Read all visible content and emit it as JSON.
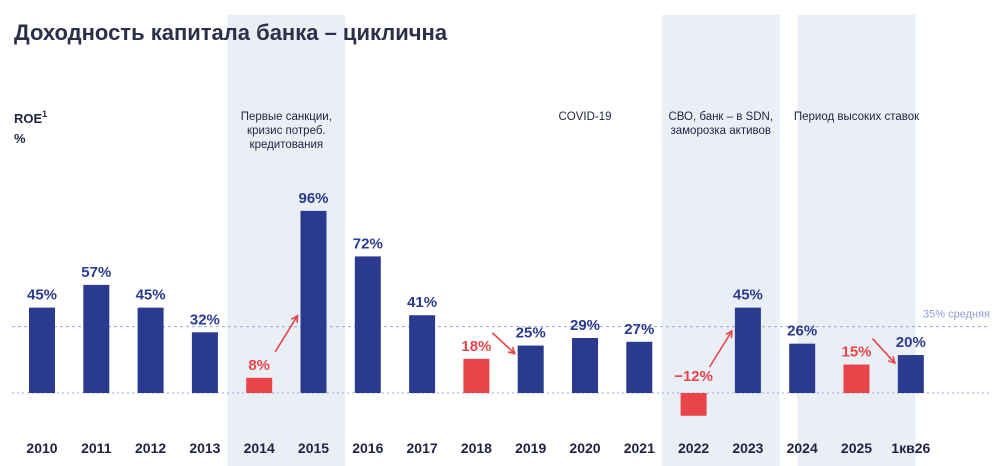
{
  "title": "Доходность капитала банка – циклична",
  "chart_data": {
    "type": "bar",
    "ylabel": "ROE",
    "ylabel_sup": "1",
    "unit": "%",
    "categories": [
      "2010",
      "2011",
      "2012",
      "2013",
      "2014",
      "2015",
      "2016",
      "2017",
      "2018",
      "2019",
      "2020",
      "2021",
      "2022",
      "2023",
      "2024",
      "2025",
      "1кв26"
    ],
    "values": [
      45,
      57,
      45,
      32,
      8,
      96,
      72,
      41,
      18,
      25,
      29,
      27,
      -12,
      45,
      26,
      15,
      20
    ],
    "value_labels": [
      "45%",
      "57%",
      "45%",
      "32%",
      "8%",
      "96%",
      "72%",
      "41%",
      "18%",
      "25%",
      "29%",
      "27%",
      "−12%",
      "45%",
      "26%",
      "15%",
      "20%"
    ],
    "highlight_red": [
      "2014",
      "2018",
      "2022",
      "2025"
    ],
    "average": {
      "value": 35,
      "label": "35% средняя"
    },
    "periods": [
      {
        "label_lines": [
          "Первые санкции,",
          "кризис потреб.",
          "кредитования"
        ],
        "from": "2014",
        "to": "2015",
        "shaded": true
      },
      {
        "label_lines": [
          "COVID-19"
        ],
        "from": "2019",
        "to": "2021",
        "shaded": false
      },
      {
        "label_lines": [
          "СВО, банк – в SDN,",
          "заморозка активов"
        ],
        "from": "2022",
        "to": "2023",
        "shaded": true
      },
      {
        "label_lines": [
          "Период высоких ставок"
        ],
        "from": "2024",
        "to": "1кв26",
        "shaded": true
      }
    ],
    "arrows": [
      [
        "2014",
        "2015"
      ],
      [
        "2018",
        "2019"
      ],
      [
        "2022",
        "2023"
      ],
      [
        "2025",
        "1кв26"
      ]
    ]
  },
  "colors": {
    "bar": "#2a3b8f",
    "bar_highlight": "#e8454a",
    "label": "#2a3b8f",
    "label_highlight": "#e8454a",
    "shade": "#eaeff6",
    "average": "#9aa8d8"
  }
}
